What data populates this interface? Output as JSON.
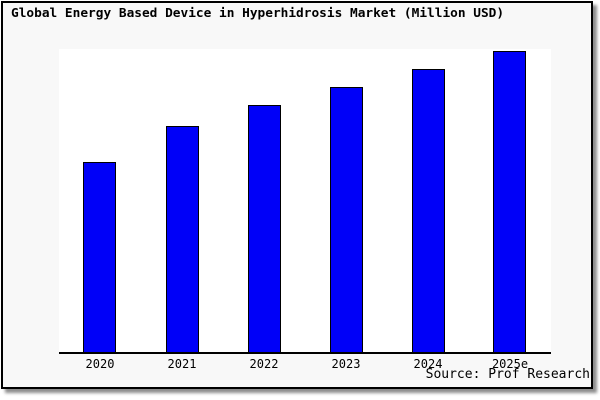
{
  "title": "Global Energy Based Device in Hyperhidrosis Market (Million USD)",
  "source_credit": "Source: Prof Research",
  "colors": {
    "bar_fill": "#0000F8",
    "bar_border": "#000000",
    "figure_background": "#F8F8F8",
    "plot_background": "#FFFFFF",
    "axis_line": "#000000",
    "text": "#000000"
  },
  "chart_data": {
    "type": "bar",
    "title": "Global Energy Based Device in Hyperhidrosis Market (Million USD)",
    "categories": [
      "2020",
      "2021",
      "2022",
      "2023",
      "2024",
      "2025e"
    ],
    "values": [
      63,
      75,
      82,
      88,
      94,
      100
    ],
    "value_scale": "relative index (y-axis unlabeled in chart; tallest bar = 100)",
    "xlabel": "",
    "ylabel": "",
    "ylim": [
      0,
      100.5
    ],
    "grid": false,
    "legend": false,
    "y_axis_visible": false
  }
}
